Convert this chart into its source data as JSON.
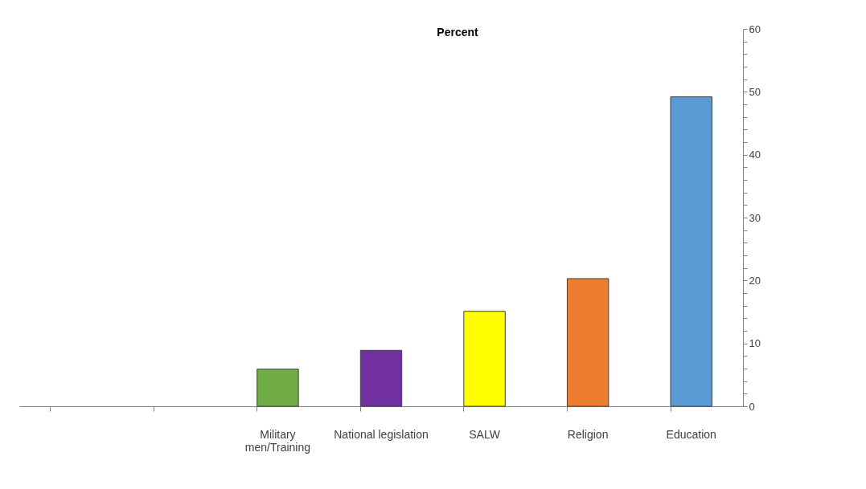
{
  "chart_data": {
    "type": "bar",
    "title": "Percent",
    "categories": [
      null,
      null,
      "Military\nmen/Training",
      "National legislation",
      "SALW",
      "Religion",
      "Education"
    ],
    "values": [
      null,
      null,
      5.9,
      8.9,
      15.1,
      20.3,
      49.2
    ],
    "colors": [
      "#70ad47",
      "#70ad47",
      "#70ad47",
      "#7030a0",
      "#ffff00",
      "#ed7d31",
      "#5b9bd5"
    ],
    "ylim": [
      0,
      60
    ],
    "yticks": [
      0,
      {
        "value": 2,
        "label": null
      },
      {
        "value": 4,
        "label": null
      },
      {
        "value": 6,
        "label": null
      },
      {
        "value": 8,
        "label": null
      },
      10,
      {
        "value": 12,
        "label": null
      },
      {
        "value": 14,
        "label": null
      },
      {
        "value": 16,
        "label": null
      },
      {
        "value": 18,
        "label": null
      },
      20,
      {
        "value": 22,
        "label": null
      },
      {
        "value": 24,
        "label": null
      },
      {
        "value": 26,
        "label": null
      },
      {
        "value": 28,
        "label": null
      },
      30,
      {
        "value": 32,
        "label": null
      },
      {
        "value": 34,
        "label": null
      },
      {
        "value": 36,
        "label": null
      },
      {
        "value": 38,
        "label": null
      },
      40,
      {
        "value": 42,
        "label": null
      },
      {
        "value": 44,
        "label": null
      },
      {
        "value": 46,
        "label": null
      },
      {
        "value": 48,
        "label": null
      },
      50,
      {
        "value": 52,
        "label": null
      },
      {
        "value": 54,
        "label": null
      },
      {
        "value": 56,
        "label": null
      },
      {
        "value": 58,
        "label": null
      },
      60
    ],
    "grid": false,
    "legend": false
  }
}
